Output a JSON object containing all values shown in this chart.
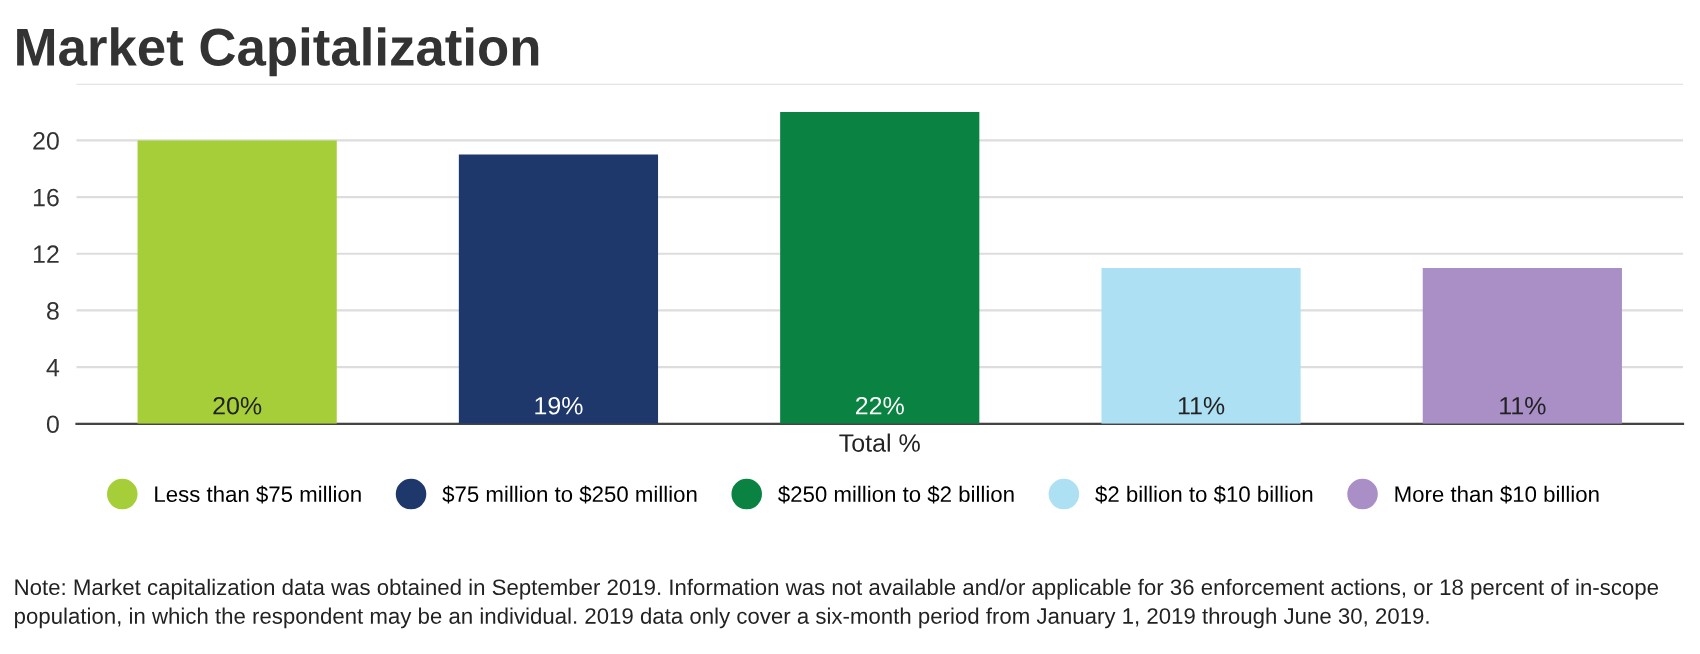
{
  "chart_data": {
    "type": "bar",
    "title": "Market Capitalization",
    "categories": [
      "Total %"
    ],
    "series": [
      {
        "name": "Less than $75 million",
        "color": "#a6ce39",
        "values": [
          20
        ],
        "value_labels": [
          "20%"
        ]
      },
      {
        "name": "$75 million to $250 million",
        "color": "#1f386b",
        "values": [
          19
        ],
        "value_labels": [
          "19%"
        ]
      },
      {
        "name": "$250 million to $2 billion",
        "color": "#0a8342",
        "values": [
          22
        ],
        "value_labels": [
          "22%"
        ]
      },
      {
        "name": "$2 billion to $10 billion",
        "color": "#aee0f4",
        "values": [
          11
        ],
        "value_labels": [
          "11%"
        ]
      },
      {
        "name": "More than $10 billion",
        "color": "#a98fc6",
        "values": [
          11
        ],
        "value_labels": [
          "11%"
        ]
      }
    ],
    "ylim": [
      0,
      24
    ],
    "yticks": [
      0,
      4,
      8,
      12,
      16,
      20,
      {
        "value": 24,
        "label": null
      }
    ],
    "grid": "y",
    "legend": "bottom",
    "annotations": [
      "Note: Market capitalization data was obtained in September 2019. Information was not available and/or applicable for 36 enforcement actions, or 18 percent of in-scope population, in which the respondent may be an individual. 2019 data only cover a six-month period from January 1, 2019 through June 30, 2019."
    ]
  }
}
